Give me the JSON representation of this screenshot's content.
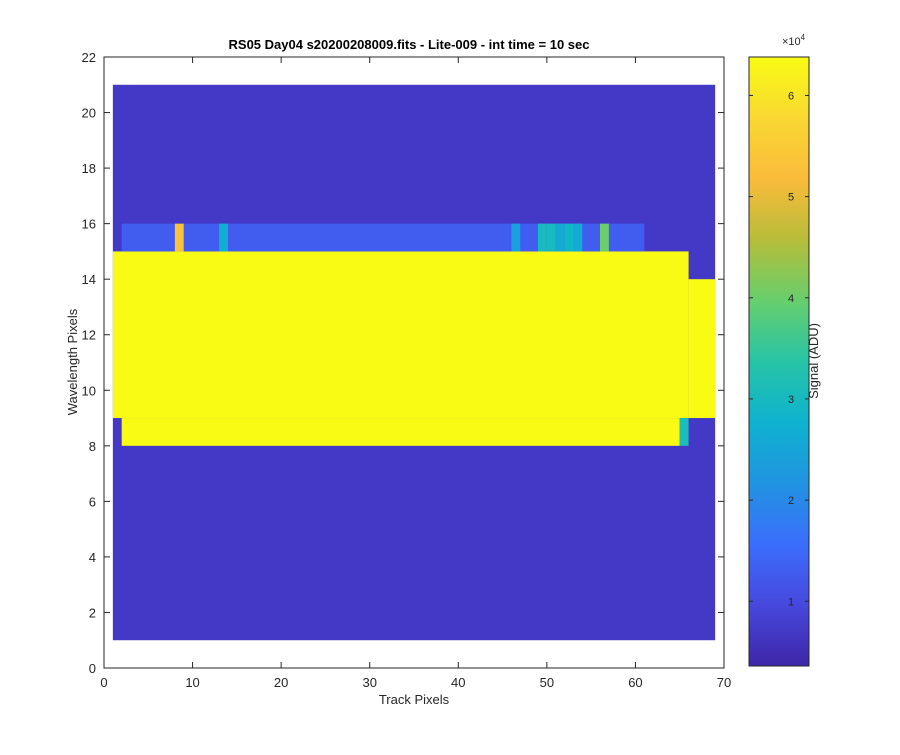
{
  "chart_data": {
    "type": "heatmap",
    "title": "RS05 Day04  s20200208009.fits - Lite-009 - int time = 10 sec",
    "xlabel": "Track Pixels",
    "ylabel": "Wavelength Pixels",
    "xlim": [
      0,
      70
    ],
    "ylim": [
      0,
      22
    ],
    "xticks": [
      0,
      10,
      20,
      30,
      40,
      50,
      60,
      70
    ],
    "yticks": [
      0,
      2,
      4,
      6,
      8,
      10,
      12,
      14,
      16,
      18,
      20,
      22
    ],
    "x_range": [
      1,
      69
    ],
    "y_range": [
      1,
      21
    ],
    "colorbar": {
      "label": "Signal (ADU)",
      "exponent_label": "×10",
      "exponent": "4",
      "range": [
        3600,
        63800
      ],
      "ticks": [
        10000,
        20000,
        30000,
        40000,
        50000,
        60000
      ],
      "tick_labels": [
        "1",
        "2",
        "3",
        "4",
        "5",
        "6"
      ],
      "colormap": "parula"
    },
    "grid": false,
    "regions": [
      {
        "name": "background",
        "x": [
          1,
          69
        ],
        "y": [
          1,
          21
        ],
        "value": 7000
      },
      {
        "name": "saturated core",
        "x": [
          1,
          66
        ],
        "y": [
          9,
          15
        ],
        "value": 63800
      },
      {
        "name": "saturated core right",
        "x": [
          66,
          69
        ],
        "y": [
          9,
          14
        ],
        "value": 63800
      },
      {
        "name": "saturated bottom row",
        "x": [
          2,
          65
        ],
        "y": [
          8,
          9
        ],
        "value": 63800
      },
      {
        "name": "upper edge row",
        "x": [
          2,
          61
        ],
        "y": [
          15,
          16
        ],
        "value": 13000
      }
    ],
    "hot_pixels": [
      {
        "x": 8.5,
        "y": 15.5,
        "value": 53000
      },
      {
        "x": 13.5,
        "y": 15.5,
        "value": 27000
      },
      {
        "x": 46.5,
        "y": 15.5,
        "value": 24000
      },
      {
        "x": 49.5,
        "y": 15.5,
        "value": 30000
      },
      {
        "x": 50.5,
        "y": 15.5,
        "value": 30000
      },
      {
        "x": 51.5,
        "y": 15.5,
        "value": 26000
      },
      {
        "x": 52.5,
        "y": 15.5,
        "value": 29000
      },
      {
        "x": 53.5,
        "y": 15.5,
        "value": 26000
      },
      {
        "x": 56.5,
        "y": 15.5,
        "value": 40000
      },
      {
        "x": 65.5,
        "y": 8.5,
        "value": 31000
      }
    ]
  }
}
